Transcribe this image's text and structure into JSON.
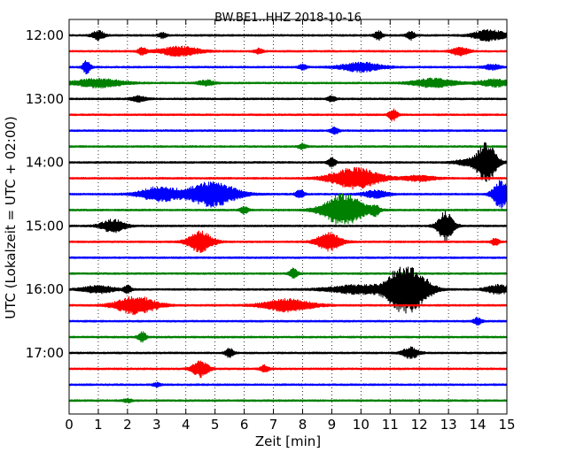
{
  "chart_data": {
    "type": "line",
    "title": "BW.BE1..HHZ 2018-10-16",
    "xlabel": "Zeit  [min]",
    "ylabel": "UTC (Lokalzeit = UTC + 02:00)",
    "xlim": [
      0,
      15
    ],
    "x_ticks": [
      "0",
      "1",
      "2",
      "3",
      "4",
      "5",
      "6",
      "7",
      "8",
      "9",
      "10",
      "11",
      "12",
      "13",
      "14",
      "15"
    ],
    "y_tick_labels": [
      "12:00",
      "13:00",
      "14:00",
      "15:00",
      "16:00",
      "17:00"
    ],
    "grid": "vertical dotted lines at each minute",
    "trace_interval_min": 15,
    "color_cycle": [
      "#000000",
      "#ff0000",
      "#0000ff",
      "#008000"
    ],
    "traces": [
      {
        "start": "12:00",
        "color": "#000000",
        "events": [
          [
            1.0,
            5,
            0.15
          ],
          [
            3.2,
            3,
            0.1
          ],
          [
            10.6,
            5,
            0.1
          ],
          [
            11.7,
            5,
            0.1
          ],
          [
            14.4,
            6,
            0.4
          ]
        ]
      },
      {
        "start": "12:15",
        "color": "#ff0000",
        "events": [
          [
            2.5,
            4,
            0.1
          ],
          [
            3.8,
            5,
            0.5
          ],
          [
            6.5,
            3,
            0.1
          ],
          [
            13.4,
            5,
            0.2
          ]
        ]
      },
      {
        "start": "12:30",
        "color": "#0000ff",
        "events": [
          [
            0.6,
            7,
            0.1
          ],
          [
            8.0,
            3,
            0.1
          ],
          [
            10.0,
            5,
            0.5
          ],
          [
            14.5,
            3,
            0.2
          ]
        ]
      },
      {
        "start": "12:45",
        "color": "#008000",
        "events": [
          [
            1.0,
            5,
            0.6
          ],
          [
            4.7,
            3,
            0.2
          ],
          [
            12.5,
            5,
            0.5
          ],
          [
            14.6,
            4,
            0.4
          ]
        ]
      },
      {
        "start": "13:00",
        "color": "#000000",
        "events": [
          [
            2.4,
            3,
            0.2
          ],
          [
            9.0,
            3,
            0.1
          ]
        ]
      },
      {
        "start": "13:15",
        "color": "#ff0000",
        "events": [
          [
            11.1,
            7,
            0.1
          ]
        ]
      },
      {
        "start": "13:30",
        "color": "#0000ff",
        "events": [
          [
            9.1,
            4,
            0.1
          ]
        ]
      },
      {
        "start": "13:45",
        "color": "#008000",
        "events": [
          [
            8.0,
            3,
            0.1
          ]
        ]
      },
      {
        "start": "14:00",
        "color": "#000000",
        "events": [
          [
            9.0,
            5,
            0.1
          ],
          [
            13.6,
            3,
            0.3
          ],
          [
            14.3,
            22,
            0.25
          ]
        ]
      },
      {
        "start": "14:15",
        "color": "#ff0000",
        "events": [
          [
            9.8,
            12,
            0.6
          ],
          [
            12.0,
            3,
            0.4
          ]
        ]
      },
      {
        "start": "14:30",
        "color": "#0000ff",
        "events": [
          [
            3.1,
            8,
            0.5
          ],
          [
            4.9,
            14,
            0.6
          ],
          [
            7.9,
            5,
            0.1
          ],
          [
            10.5,
            4,
            0.3
          ],
          [
            14.8,
            16,
            0.2
          ]
        ]
      },
      {
        "start": "14:45",
        "color": "#008000",
        "events": [
          [
            6.0,
            4,
            0.1
          ],
          [
            9.4,
            18,
            0.5
          ],
          [
            10.5,
            5,
            0.1
          ]
        ]
      },
      {
        "start": "15:00",
        "color": "#000000",
        "events": [
          [
            1.5,
            7,
            0.3
          ],
          [
            12.9,
            16,
            0.2
          ]
        ]
      },
      {
        "start": "15:15",
        "color": "#ff0000",
        "events": [
          [
            4.5,
            12,
            0.3
          ],
          [
            8.9,
            10,
            0.3
          ],
          [
            14.6,
            4,
            0.1
          ]
        ]
      },
      {
        "start": "15:30",
        "color": "#0000ff",
        "events": []
      },
      {
        "start": "15:45",
        "color": "#008000",
        "events": [
          [
            7.7,
            6,
            0.1
          ]
        ]
      },
      {
        "start": "16:00",
        "color": "#000000",
        "events": [
          [
            1.0,
            4,
            0.4
          ],
          [
            2.0,
            4,
            0.1
          ],
          [
            10.0,
            5,
            0.8
          ],
          [
            11.2,
            14,
            0.3
          ],
          [
            11.8,
            22,
            0.4
          ],
          [
            14.7,
            5,
            0.3
          ]
        ]
      },
      {
        "start": "16:15",
        "color": "#ff0000",
        "events": [
          [
            2.3,
            10,
            0.5
          ],
          [
            7.5,
            7,
            0.6
          ]
        ]
      },
      {
        "start": "16:30",
        "color": "#0000ff",
        "events": [
          [
            14.0,
            4,
            0.1
          ]
        ]
      },
      {
        "start": "16:45",
        "color": "#008000",
        "events": [
          [
            2.5,
            6,
            0.1
          ]
        ]
      },
      {
        "start": "17:00",
        "color": "#000000",
        "events": [
          [
            5.5,
            5,
            0.1
          ],
          [
            11.7,
            6,
            0.2
          ]
        ]
      },
      {
        "start": "17:15",
        "color": "#ff0000",
        "events": [
          [
            4.5,
            9,
            0.2
          ],
          [
            6.7,
            4,
            0.1
          ]
        ]
      },
      {
        "start": "17:30",
        "color": "#0000ff",
        "events": [
          [
            3.0,
            2,
            0.1
          ]
        ]
      },
      {
        "start": "17:45",
        "color": "#008000",
        "events": [
          [
            2.0,
            2,
            0.1
          ]
        ]
      }
    ]
  }
}
